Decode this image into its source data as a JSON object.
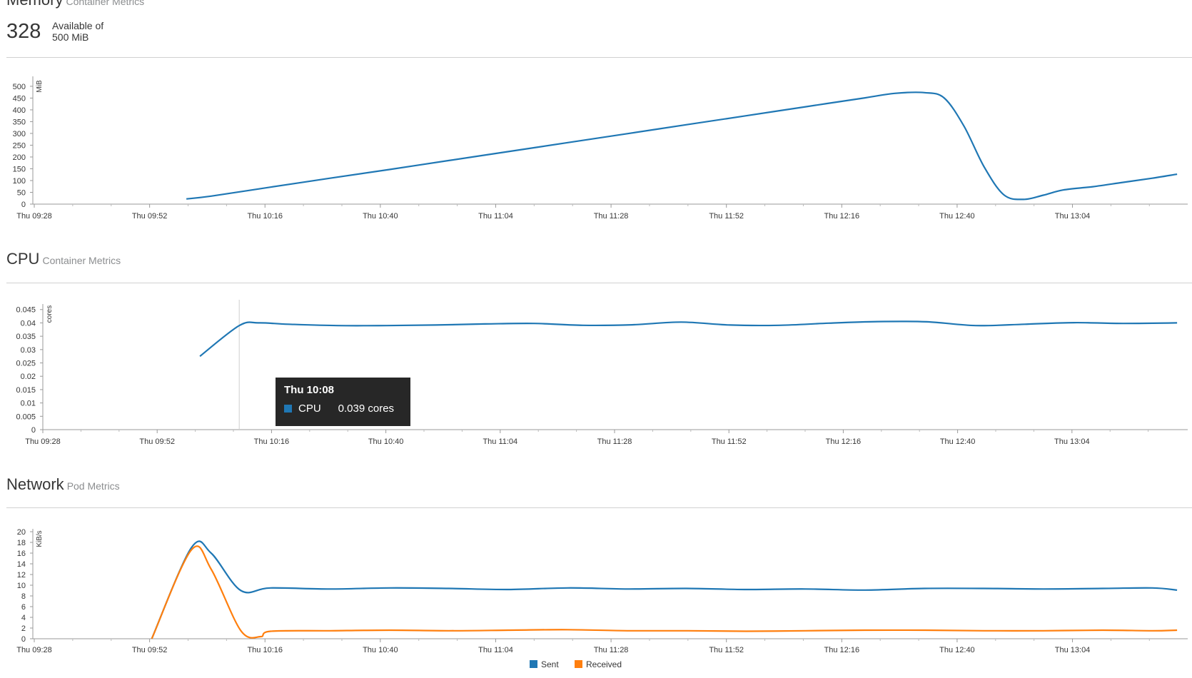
{
  "memory": {
    "title": "Memory",
    "subtitle": "Container Metrics",
    "big_value": "328",
    "available_line1": "Available of",
    "available_line2": "500 MiB"
  },
  "cpu": {
    "title": "CPU",
    "subtitle": "Container Metrics"
  },
  "network": {
    "title": "Network",
    "subtitle": "Pod Metrics"
  },
  "tooltip": {
    "title": "Thu 10:08",
    "series": "CPU",
    "value": "0.039 cores",
    "color": "#1f77b4"
  },
  "colors": {
    "blue": "#1f77b4",
    "orange": "#ff7f0e"
  },
  "chart_data": [
    {
      "id": "memory",
      "type": "line",
      "ylabel": "MiB",
      "ylim": [
        0,
        530
      ],
      "yticks": [
        0,
        50,
        100,
        150,
        200,
        250,
        300,
        350,
        400,
        450,
        500
      ],
      "xticks": [
        "Thu 09:28",
        "Thu 09:52",
        "Thu 10:16",
        "Thu 10:40",
        "Thu 11:04",
        "Thu 11:28",
        "Thu 11:52",
        "Thu 12:16",
        "Thu 12:40",
        "Thu 13:04"
      ],
      "xrange": [
        0,
        232
      ],
      "series": [
        {
          "name": "Memory",
          "color": "#1f77b4",
          "x": [
            31,
            36,
            48,
            60,
            72,
            84,
            96,
            108,
            120,
            132,
            144,
            156,
            168,
            174,
            180,
            184,
            188,
            192,
            196,
            200,
            204,
            208,
            214,
            220,
            226,
            231
          ],
          "y": [
            22,
            34,
            72,
            110,
            147,
            185,
            223,
            261,
            299,
            337,
            375,
            413,
            451,
            470,
            473,
            450,
            330,
            160,
            40,
            20,
            38,
            60,
            74,
            92,
            110,
            127
          ]
        }
      ]
    },
    {
      "id": "cpu",
      "type": "line",
      "ylabel": "cores",
      "ylim": [
        0,
        0.046
      ],
      "yticks": [
        "0",
        "0.005",
        "0.01",
        "0.015",
        "0.02",
        "0.025",
        "0.03",
        "0.035",
        "0.04",
        "0.045"
      ],
      "ytick_values": [
        0,
        0.005,
        0.01,
        0.015,
        0.02,
        0.025,
        0.03,
        0.035,
        0.04,
        0.045
      ],
      "xticks": [
        "Thu 09:28",
        "Thu 09:52",
        "Thu 10:16",
        "Thu 10:40",
        "Thu 11:04",
        "Thu 11:28",
        "Thu 11:52",
        "Thu 12:16",
        "Thu 12:40",
        "Thu 13:04"
      ],
      "xrange": [
        0,
        232
      ],
      "crosshair_x": 40,
      "series": [
        {
          "name": "CPU",
          "color": "#1f77b4",
          "x": [
            32,
            40,
            44,
            50,
            60,
            70,
            80,
            90,
            100,
            110,
            120,
            130,
            140,
            150,
            160,
            170,
            180,
            190,
            200,
            210,
            220,
            231
          ],
          "y": [
            0.0275,
            0.039,
            0.04,
            0.0395,
            0.039,
            0.039,
            0.0392,
            0.0396,
            0.0398,
            0.0391,
            0.0393,
            0.0403,
            0.0392,
            0.0391,
            0.0399,
            0.0405,
            0.0404,
            0.039,
            0.0395,
            0.0401,
            0.0398,
            0.04
          ]
        }
      ]
    },
    {
      "id": "network",
      "type": "line",
      "ylabel": "KiB/s",
      "ylim": [
        0,
        20
      ],
      "yticks": [
        0,
        2,
        4,
        6,
        8,
        10,
        12,
        14,
        16,
        18,
        20
      ],
      "xticks": [
        "Thu 09:28",
        "Thu 09:52",
        "Thu 10:16",
        "Thu 10:40",
        "Thu 11:04",
        "Thu 11:28",
        "Thu 11:52",
        "Thu 12:16",
        "Thu 12:40",
        "Thu 13:04"
      ],
      "xrange": [
        0,
        232
      ],
      "legend_position": "bottom-center",
      "series": [
        {
          "name": "Sent",
          "color": "#1f77b4",
          "x": [
            24,
            32,
            36,
            42,
            48,
            60,
            72,
            84,
            96,
            108,
            120,
            132,
            144,
            156,
            168,
            180,
            192,
            204,
            216,
            226,
            231
          ],
          "y": [
            0,
            17,
            16,
            9,
            9.5,
            9.3,
            9.5,
            9.4,
            9.2,
            9.5,
            9.3,
            9.4,
            9.2,
            9.3,
            9.1,
            9.4,
            9.4,
            9.3,
            9.4,
            9.5,
            9.1
          ]
        },
        {
          "name": "Received",
          "color": "#ff7f0e",
          "x": [
            24,
            32,
            36,
            42,
            46,
            48,
            60,
            72,
            84,
            96,
            108,
            120,
            132,
            144,
            156,
            168,
            180,
            192,
            204,
            216,
            226,
            231
          ],
          "y": [
            0,
            16.6,
            13,
            1.5,
            0.4,
            1.4,
            1.5,
            1.6,
            1.5,
            1.6,
            1.7,
            1.5,
            1.5,
            1.4,
            1.5,
            1.6,
            1.6,
            1.5,
            1.5,
            1.6,
            1.5,
            1.6
          ]
        }
      ]
    }
  ]
}
